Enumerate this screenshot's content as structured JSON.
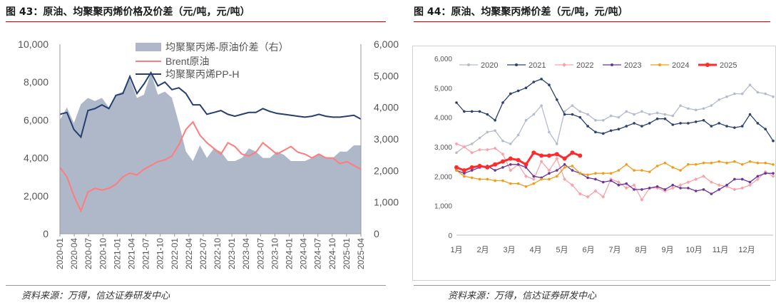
{
  "left": {
    "fig_title": "图 43：原油、均聚聚丙烯价格及价差（元/吨，元/吨）",
    "source": "资料来源：万得，信达证券研发中心",
    "colors": {
      "area": "#aeb8c9",
      "brent": "#ff7c7c",
      "pp": "#263f70"
    },
    "chart_data": {
      "type": "line",
      "title": "",
      "legend": [
        "均聚聚丙烯-原油价差（右）",
        "Brent原油",
        "均聚聚丙烯PP-H"
      ],
      "left_axis": {
        "ylim": [
          0,
          10000
        ],
        "ticks": [
          "0",
          "2,000",
          "4,000",
          "6,000",
          "8,000",
          "10,000"
        ]
      },
      "right_axis": {
        "ylim": [
          0,
          6000
        ],
        "ticks": [
          "0",
          "1,000",
          "2,000",
          "3,000",
          "4,000",
          "5,000",
          "6,000"
        ]
      },
      "x_ticks": [
        "2020-01",
        "2020-04",
        "2020-07",
        "2020-10",
        "2021-01",
        "2021-04",
        "2021-07",
        "2021-10",
        "2022-01",
        "2022-04",
        "2022-07",
        "2022-10",
        "2023-01",
        "2023-04",
        "2023-07",
        "2023-10",
        "2024-01",
        "2024-04",
        "2024-07",
        "2024-10",
        "2025-01",
        "2025-04"
      ],
      "series": [
        {
          "name": "均聚聚丙烯PP-H",
          "axis": "left",
          "values": [
            6300,
            6400,
            5500,
            5100,
            6500,
            6600,
            6800,
            6600,
            7300,
            7400,
            8300,
            7400,
            7900,
            8500,
            7800,
            8000,
            7600,
            7700,
            7400,
            6800,
            6800,
            6300,
            6400,
            6500,
            6300,
            6200,
            6300,
            6400,
            6400,
            6600,
            6450,
            6350,
            6300,
            6250,
            6200,
            6150,
            6200,
            6300,
            6200,
            6150,
            6150,
            6200,
            6250,
            6050
          ]
        },
        {
          "name": "Brent原油",
          "axis": "left",
          "values": [
            3500,
            3000,
            2000,
            1200,
            2200,
            2400,
            2300,
            2400,
            2600,
            3000,
            3200,
            3100,
            3400,
            3600,
            3800,
            3900,
            4100,
            4700,
            5500,
            5900,
            5200,
            4800,
            4500,
            4200,
            4800,
            4600,
            4200,
            4100,
            4300,
            4800,
            4500,
            4200,
            4400,
            4600,
            4300,
            4200,
            4000,
            4200,
            4000,
            4000,
            3700,
            3800,
            3600,
            3400
          ]
        },
        {
          "name": "均聚聚丙烯-原油价差（右）",
          "axis": "right",
          "type": "area",
          "values": [
            3600,
            4000,
            3500,
            4100,
            4300,
            4200,
            4300,
            4000,
            4400,
            4500,
            4900,
            4300,
            4400,
            5100,
            4400,
            4500,
            4300,
            3500,
            2600,
            2300,
            2800,
            2400,
            2700,
            2600,
            2300,
            2300,
            2400,
            2700,
            2600,
            2400,
            2400,
            2600,
            2500,
            2300,
            2300,
            2300,
            2400,
            2500,
            2400,
            2400,
            2600,
            2600,
            2800,
            2800
          ]
        }
      ]
    }
  },
  "right": {
    "fig_title": "图 44：原油、均聚聚丙烯价差（元/吨，元/吨）",
    "source": "资料来源：万得，信达证券研发中心",
    "chart_data": {
      "type": "line",
      "title": "",
      "y_axis": {
        "ylim": [
          0,
          6000
        ],
        "ticks": [
          "0",
          "1,000",
          "2,000",
          "3,000",
          "4,000",
          "5,000",
          "6,000"
        ]
      },
      "x_ticks": [
        "1月",
        "2月",
        "3月",
        "4月",
        "5月",
        "6月",
        "7月",
        "8月",
        "9月",
        "10月",
        "11月",
        "12月"
      ],
      "series": [
        {
          "name": "2020",
          "color": "#b4bccb",
          "marker": "circle",
          "values": [
            2800,
            3000,
            3100,
            3300,
            3500,
            3550,
            3200,
            3100,
            3400,
            3900,
            4100,
            4400,
            3500,
            3100,
            4200,
            4400,
            4200,
            4100,
            3900,
            3900,
            4050,
            4000,
            4200,
            4100,
            4200,
            4100,
            4150,
            4100,
            4050,
            4400,
            4300,
            4250,
            4300,
            4400,
            4600,
            4700,
            4800,
            4800,
            5100,
            4850,
            4800,
            4700
          ]
        },
        {
          "name": "2021",
          "color": "#2b426f",
          "marker": "circle",
          "values": [
            4500,
            4200,
            4200,
            4200,
            4100,
            3900,
            4500,
            4800,
            4900,
            5000,
            5200,
            5300,
            5100,
            4600,
            4100,
            4100,
            4000,
            3700,
            3500,
            3450,
            3550,
            3600,
            3700,
            3800,
            3700,
            3800,
            3950,
            3950,
            3750,
            3800,
            3800,
            3850,
            3900,
            3700,
            3800,
            3700,
            3650,
            3700,
            4100,
            3800,
            3600,
            3200
          ]
        },
        {
          "name": "2022",
          "color": "#f7a3a9",
          "marker": "diamond",
          "values": [
            3100,
            3000,
            2800,
            2900,
            2900,
            2950,
            2750,
            2200,
            2400,
            2000,
            1900,
            2500,
            2200,
            2600,
            1900,
            1700,
            1400,
            1300,
            1500,
            1300,
            1900,
            1800,
            1600,
            1700,
            1200,
            1600,
            1600,
            1500,
            1600,
            1700,
            1800,
            1900,
            2000,
            1800,
            1700,
            1650,
            1550,
            1600,
            1700,
            1900,
            2150,
            2000
          ]
        },
        {
          "name": "2023",
          "color": "#6a3596",
          "marker": "circle",
          "values": [
            2200,
            2100,
            2200,
            2300,
            2350,
            2200,
            2300,
            2400,
            2400,
            2300,
            2000,
            1950,
            2100,
            2200,
            2400,
            2200,
            2100,
            1950,
            1900,
            1800,
            1850,
            1700,
            1750,
            1550,
            1550,
            1600,
            1650,
            1550,
            1700,
            1600,
            1600,
            1500,
            1550,
            1400,
            1550,
            1700,
            1900,
            1900,
            1800,
            2000,
            2100,
            2100
          ]
        },
        {
          "name": "2024",
          "color": "#f29b15",
          "marker": "circle",
          "values": [
            2200,
            2000,
            1950,
            1900,
            1900,
            1850,
            1850,
            1750,
            1750,
            1650,
            1750,
            1900,
            1900,
            2000,
            2300,
            2350,
            2100,
            2050,
            2100,
            2100,
            2100,
            2200,
            2400,
            2200,
            2200,
            2150,
            2350,
            2450,
            2300,
            2200,
            2400,
            2400,
            2450,
            2450,
            2500,
            2450,
            2500,
            2400,
            2500,
            2450,
            2450,
            2400
          ]
        },
        {
          "name": "2025",
          "color": "#ff2b2b",
          "marker": "circle",
          "bold": true,
          "values": [
            2300,
            2200,
            2300,
            2350,
            2300,
            2400,
            2500,
            2600,
            2550,
            2400,
            2800,
            2700,
            2700,
            2750,
            2600,
            2800,
            2700
          ]
        }
      ]
    }
  }
}
